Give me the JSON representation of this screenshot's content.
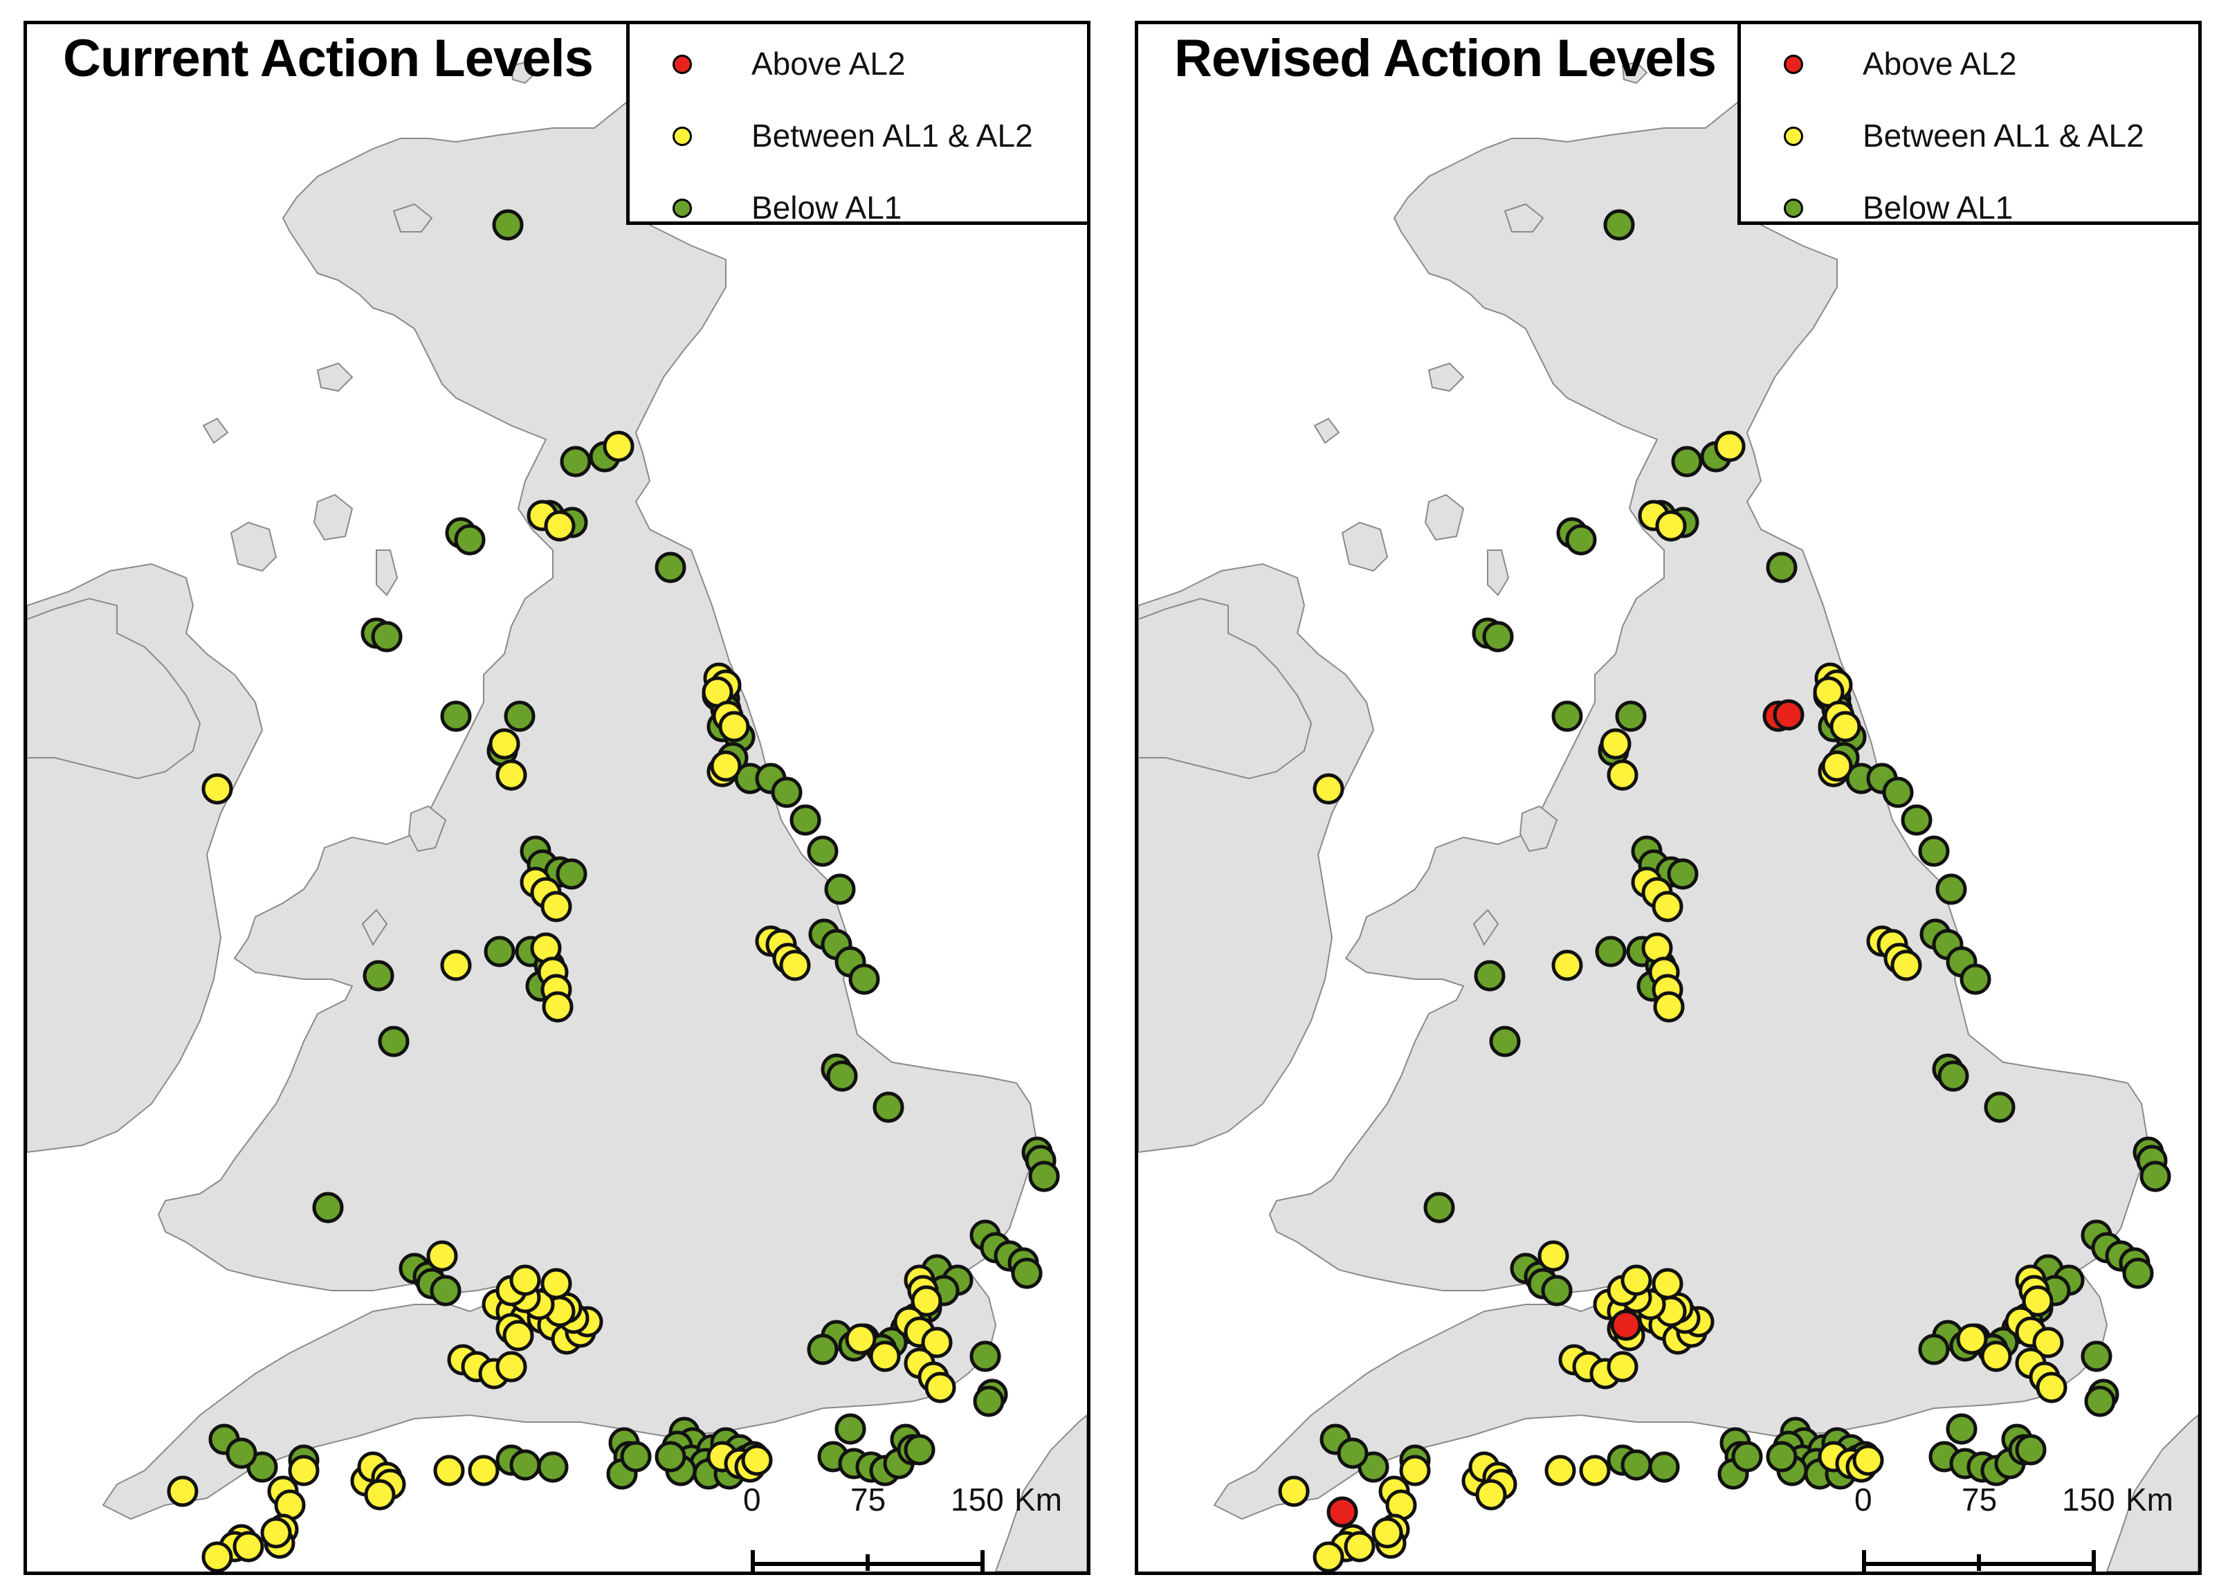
{
  "colors": {
    "above": "#e8221b",
    "between": "#fff23a",
    "below": "#6aa12a",
    "land": "#e0e0e0",
    "coast": "#8a8a8a"
  },
  "legend": [
    {
      "key": "above",
      "label": "Above AL2"
    },
    {
      "key": "between",
      "label": "Between AL1 & AL2"
    },
    {
      "key": "below",
      "label": "Below AL1"
    }
  ],
  "scale": {
    "tick0": "0",
    "tick1": "75",
    "tick2": "150",
    "unit": "Km"
  },
  "panels": [
    {
      "title": "Current Action Levels"
    },
    {
      "title": "Revised Action Levels"
    }
  ]
}
